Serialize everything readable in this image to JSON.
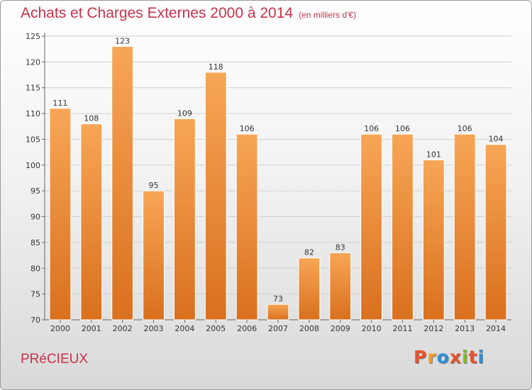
{
  "header": {
    "title": "Achats et Charges Externes 2000 à 2014",
    "unit": "(en milliers d'€)"
  },
  "footer": {
    "commune": "PRéCIEUX",
    "logo_text": "Proxiti",
    "logo_colors": [
      "#e8532b",
      "#f29a1e",
      "#2d8fd6",
      "#e8532b",
      "#7bbf1e",
      "#e8532b",
      "#2d8fd6"
    ]
  },
  "chart_data": {
    "type": "bar",
    "categories": [
      "2000",
      "2001",
      "2002",
      "2003",
      "2004",
      "2005",
      "2006",
      "2007",
      "2008",
      "2009",
      "2010",
      "2011",
      "2012",
      "2013",
      "2014"
    ],
    "values": [
      111,
      108,
      123,
      95,
      109,
      118,
      106,
      73,
      82,
      83,
      106,
      106,
      101,
      106,
      104
    ],
    "ylim": [
      70,
      125
    ],
    "yticks": [
      70,
      75,
      80,
      85,
      90,
      95,
      100,
      105,
      110,
      115,
      120,
      125
    ],
    "grid": true,
    "bar_color": "#f0903a"
  }
}
